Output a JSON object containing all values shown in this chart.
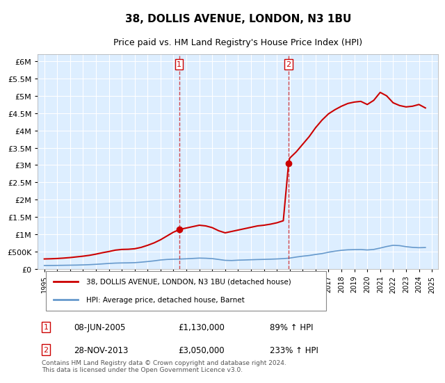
{
  "title": "38, DOLLIS AVENUE, LONDON, N3 1BU",
  "subtitle": "Price paid vs. HM Land Registry's House Price Index (HPI)",
  "footer": "Contains HM Land Registry data © Crown copyright and database right 2024.\nThis data is licensed under the Open Government Licence v3.0.",
  "legend_line1": "38, DOLLIS AVENUE, LONDON, N3 1BU (detached house)",
  "legend_line2": "HPI: Average price, detached house, Barnet",
  "sale1_label": "1",
  "sale1_date": "08-JUN-2005",
  "sale1_price": "£1,130,000",
  "sale1_hpi": "89% ↑ HPI",
  "sale2_label": "2",
  "sale2_date": "28-NOV-2013",
  "sale2_price": "£3,050,000",
  "sale2_hpi": "233% ↑ HPI",
  "sale1_x": 2005.44,
  "sale1_y": 1130000,
  "sale2_x": 2013.91,
  "sale2_y": 3050000,
  "vline1_x": 2005.44,
  "vline2_x": 2013.91,
  "price_color": "#cc0000",
  "hpi_color": "#6699cc",
  "background_color": "#ddeeff",
  "plot_bg": "#ddeeff",
  "ylim": [
    0,
    6200000
  ],
  "xlim": [
    1994.5,
    2025.5
  ],
  "yticks": [
    0,
    500000,
    1000000,
    1500000,
    2000000,
    2500000,
    3000000,
    3500000,
    4000000,
    4500000,
    5000000,
    5500000,
    6000000
  ],
  "xticks": [
    1995,
    1996,
    1997,
    1998,
    1999,
    2000,
    2001,
    2002,
    2003,
    2004,
    2005,
    2006,
    2007,
    2008,
    2009,
    2010,
    2011,
    2012,
    2013,
    2014,
    2015,
    2016,
    2017,
    2018,
    2019,
    2020,
    2021,
    2022,
    2023,
    2024,
    2025
  ],
  "hpi_x": [
    1995,
    1995.5,
    1996,
    1996.5,
    1997,
    1997.5,
    1998,
    1998.5,
    1999,
    1999.5,
    2000,
    2000.5,
    2001,
    2001.5,
    2002,
    2002.5,
    2003,
    2003.5,
    2004,
    2004.5,
    2005,
    2005.5,
    2006,
    2006.5,
    2007,
    2007.5,
    2008,
    2008.5,
    2009,
    2009.5,
    2010,
    2010.5,
    2011,
    2011.5,
    2012,
    2012.5,
    2013,
    2013.5,
    2014,
    2014.5,
    2015,
    2015.5,
    2016,
    2016.5,
    2017,
    2017.5,
    2018,
    2018.5,
    2019,
    2019.5,
    2020,
    2020.5,
    2021,
    2021.5,
    2022,
    2022.5,
    2023,
    2023.5,
    2024,
    2024.5
  ],
  "hpi_y": [
    95000,
    97000,
    99000,
    102000,
    105000,
    108000,
    113000,
    120000,
    130000,
    142000,
    155000,
    165000,
    170000,
    172000,
    178000,
    192000,
    210000,
    230000,
    255000,
    270000,
    278000,
    282000,
    290000,
    300000,
    310000,
    305000,
    295000,
    270000,
    245000,
    240000,
    250000,
    255000,
    262000,
    268000,
    272000,
    278000,
    285000,
    295000,
    310000,
    340000,
    365000,
    385000,
    415000,
    440000,
    480000,
    510000,
    535000,
    550000,
    555000,
    558000,
    545000,
    560000,
    600000,
    645000,
    680000,
    670000,
    640000,
    620000,
    610000,
    615000
  ],
  "price_x": [
    1995.0,
    1995.5,
    1996.0,
    1996.5,
    1997.0,
    1997.5,
    1998.0,
    1998.5,
    1999.0,
    1999.5,
    2000.0,
    2000.5,
    2001.0,
    2001.5,
    2002.0,
    2002.5,
    2003.0,
    2003.5,
    2004.0,
    2004.5,
    2005.0,
    2005.44,
    2005.5,
    2006.0,
    2006.5,
    2007.0,
    2007.5,
    2008.0,
    2008.5,
    2009.0,
    2009.5,
    2010.0,
    2010.5,
    2011.0,
    2011.5,
    2012.0,
    2012.5,
    2013.0,
    2013.5,
    2013.91,
    2014.0,
    2014.5,
    2015.0,
    2015.5,
    2016.0,
    2016.5,
    2017.0,
    2017.5,
    2018.0,
    2018.5,
    2019.0,
    2019.5,
    2020.0,
    2020.5,
    2021.0,
    2021.5,
    2022.0,
    2022.5,
    2023.0,
    2023.5,
    2024.0,
    2024.5
  ],
  "price_y": [
    285000,
    290000,
    298000,
    310000,
    325000,
    345000,
    365000,
    390000,
    425000,
    465000,
    500000,
    540000,
    560000,
    565000,
    580000,
    620000,
    680000,
    750000,
    840000,
    950000,
    1060000,
    1130000,
    1140000,
    1180000,
    1220000,
    1260000,
    1240000,
    1190000,
    1100000,
    1040000,
    1080000,
    1120000,
    1160000,
    1200000,
    1240000,
    1260000,
    1290000,
    1330000,
    1390000,
    3050000,
    3200000,
    3380000,
    3600000,
    3820000,
    4080000,
    4300000,
    4480000,
    4600000,
    4700000,
    4780000,
    4820000,
    4840000,
    4750000,
    4870000,
    5100000,
    5000000,
    4800000,
    4720000,
    4680000,
    4700000,
    4750000,
    4650000
  ]
}
